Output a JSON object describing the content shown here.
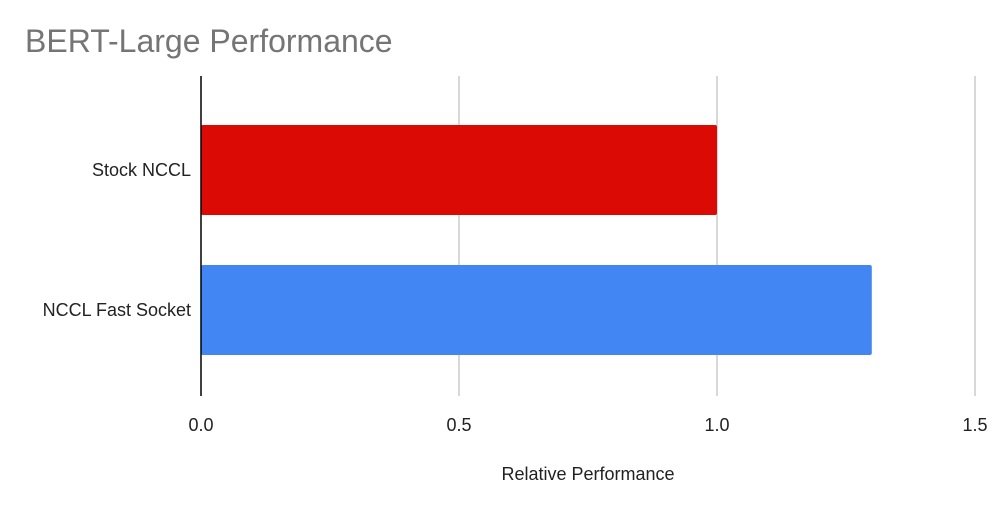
{
  "chart_data": {
    "type": "bar",
    "orientation": "horizontal",
    "title": "BERT-Large Performance",
    "xlabel": "Relative Performance",
    "ylabel": "",
    "categories": [
      "Stock NCCL",
      "NCCL Fast Socket"
    ],
    "values": [
      1.0,
      1.3
    ],
    "colors": [
      "#dc0a05",
      "#4286f4"
    ],
    "xlim": [
      0,
      1.5
    ],
    "xticks": [
      "0.0",
      "0.5",
      "1.0",
      "1.5"
    ],
    "grid": true,
    "legend": "none"
  }
}
